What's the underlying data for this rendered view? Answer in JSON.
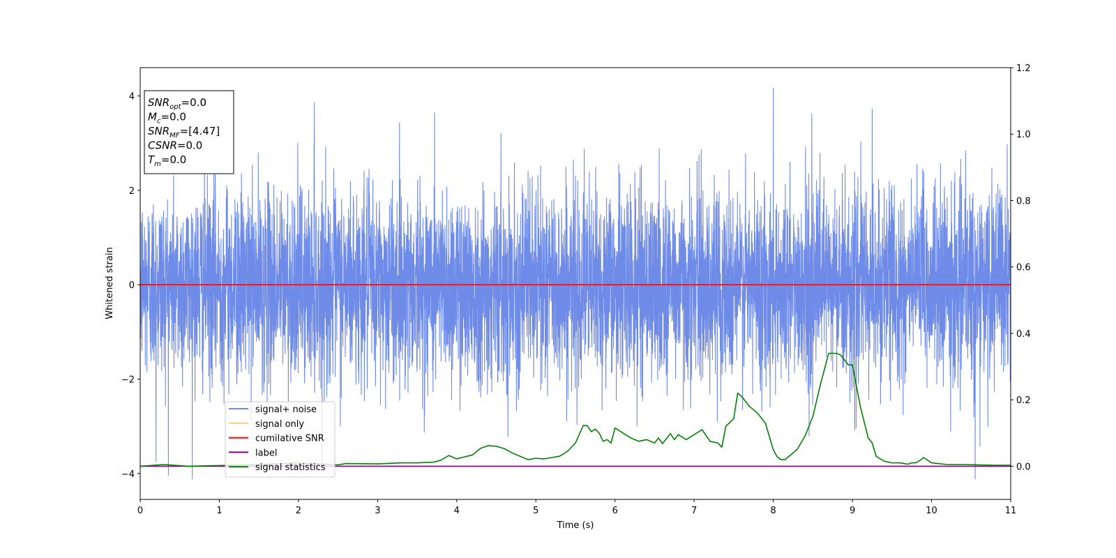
{
  "chart_data": {
    "type": "line",
    "xlabel": "Time (s)",
    "ylabel": "Whitened strain",
    "xlim": [
      0,
      11
    ],
    "ylim": [
      -4.55,
      4.6
    ],
    "y2lim": [
      -0.1,
      1.2
    ],
    "x_ticks": [
      "0",
      "1",
      "2",
      "3",
      "4",
      "5",
      "6",
      "7",
      "8",
      "9",
      "10",
      "11"
    ],
    "y_ticks": [
      "−4",
      "−2",
      "0",
      "2",
      "4"
    ],
    "y2_ticks": [
      "0.0",
      "0.2",
      "0.4",
      "0.6",
      "0.8",
      "1.0",
      "1.2"
    ],
    "grid": false,
    "legend_position": "lower-left",
    "stats": [
      {
        "name": "SNR",
        "sub": "opt",
        "value": "=0.0"
      },
      {
        "name": "M",
        "sub": "c",
        "value": "=0.0"
      },
      {
        "name": "SNR",
        "sub": "MF",
        "value": "=[4.47]"
      },
      {
        "name": "CSNR",
        "sub": "",
        "value": "=0.0"
      },
      {
        "name": "T",
        "sub": "m",
        "value": "=0.0"
      }
    ],
    "series": [
      {
        "name": "signal+ noise",
        "axis": "left",
        "color": "#6e8be8",
        "noise": {
          "std": 1.0,
          "min": -4.12,
          "max": 4.17
        },
        "notable_peaks": [
          [
            2.2,
            3.86
          ],
          [
            3.72,
            3.64
          ],
          [
            8.0,
            4.17
          ],
          [
            9.25,
            3.72
          ],
          [
            10.55,
            -4.12
          ],
          [
            0.2,
            -3.75
          ]
        ]
      },
      {
        "name": "signal only",
        "axis": "left",
        "color": "#ffcc80",
        "x": [
          0,
          11
        ],
        "y": [
          0,
          0
        ]
      },
      {
        "name": "cumilative SNR",
        "axis": "left",
        "color": "#ff0000",
        "x": [
          0,
          11
        ],
        "y": [
          0,
          0
        ]
      },
      {
        "name": "label",
        "axis": "right",
        "color": "#800080",
        "x": [
          0,
          11
        ],
        "y": [
          0,
          0
        ]
      },
      {
        "name": "signal statistics",
        "axis": "right",
        "color": "#008000",
        "x": [
          0,
          0.3,
          0.6,
          1.0,
          1.5,
          2.0,
          2.5,
          2.6,
          3.0,
          3.3,
          3.5,
          3.7,
          3.8,
          3.9,
          4.0,
          4.2,
          4.3,
          4.4,
          4.5,
          4.6,
          4.7,
          4.8,
          4.9,
          5.0,
          5.1,
          5.2,
          5.3,
          5.4,
          5.5,
          5.6,
          5.65,
          5.7,
          5.75,
          5.8,
          5.85,
          5.9,
          5.95,
          6.0,
          6.1,
          6.2,
          6.3,
          6.4,
          6.5,
          6.55,
          6.6,
          6.7,
          6.75,
          6.8,
          6.9,
          7.0,
          7.1,
          7.2,
          7.3,
          7.35,
          7.4,
          7.5,
          7.55,
          7.6,
          7.7,
          7.8,
          7.9,
          8.0,
          8.05,
          8.1,
          8.15,
          8.2,
          8.3,
          8.4,
          8.5,
          8.6,
          8.7,
          8.8,
          8.85,
          8.9,
          8.95,
          9.0,
          9.1,
          9.2,
          9.25,
          9.3,
          9.4,
          9.5,
          9.6,
          9.7,
          9.75,
          9.8,
          9.85,
          9.9,
          10.0,
          10.2,
          10.4,
          10.6,
          10.8,
          11.0
        ],
        "y": [
          0.0,
          0.005,
          0.0,
          0.002,
          0.005,
          0.01,
          0.004,
          0.008,
          0.007,
          0.01,
          0.01,
          0.012,
          0.018,
          0.032,
          0.022,
          0.034,
          0.054,
          0.062,
          0.06,
          0.053,
          0.04,
          0.03,
          0.02,
          0.024,
          0.022,
          0.026,
          0.03,
          0.045,
          0.07,
          0.123,
          0.122,
          0.104,
          0.112,
          0.1,
          0.075,
          0.08,
          0.07,
          0.115,
          0.1,
          0.085,
          0.075,
          0.08,
          0.07,
          0.085,
          0.068,
          0.098,
          0.08,
          0.095,
          0.08,
          0.095,
          0.11,
          0.075,
          0.07,
          0.057,
          0.12,
          0.143,
          0.22,
          0.21,
          0.18,
          0.16,
          0.13,
          0.05,
          0.028,
          0.02,
          0.02,
          0.03,
          0.05,
          0.09,
          0.15,
          0.25,
          0.34,
          0.34,
          0.335,
          0.32,
          0.305,
          0.305,
          0.18,
          0.085,
          0.07,
          0.03,
          0.015,
          0.01,
          0.01,
          0.006,
          0.01,
          0.01,
          0.017,
          0.026,
          0.01,
          0.005,
          0.005,
          0.004,
          0.003,
          0.003
        ]
      }
    ]
  }
}
